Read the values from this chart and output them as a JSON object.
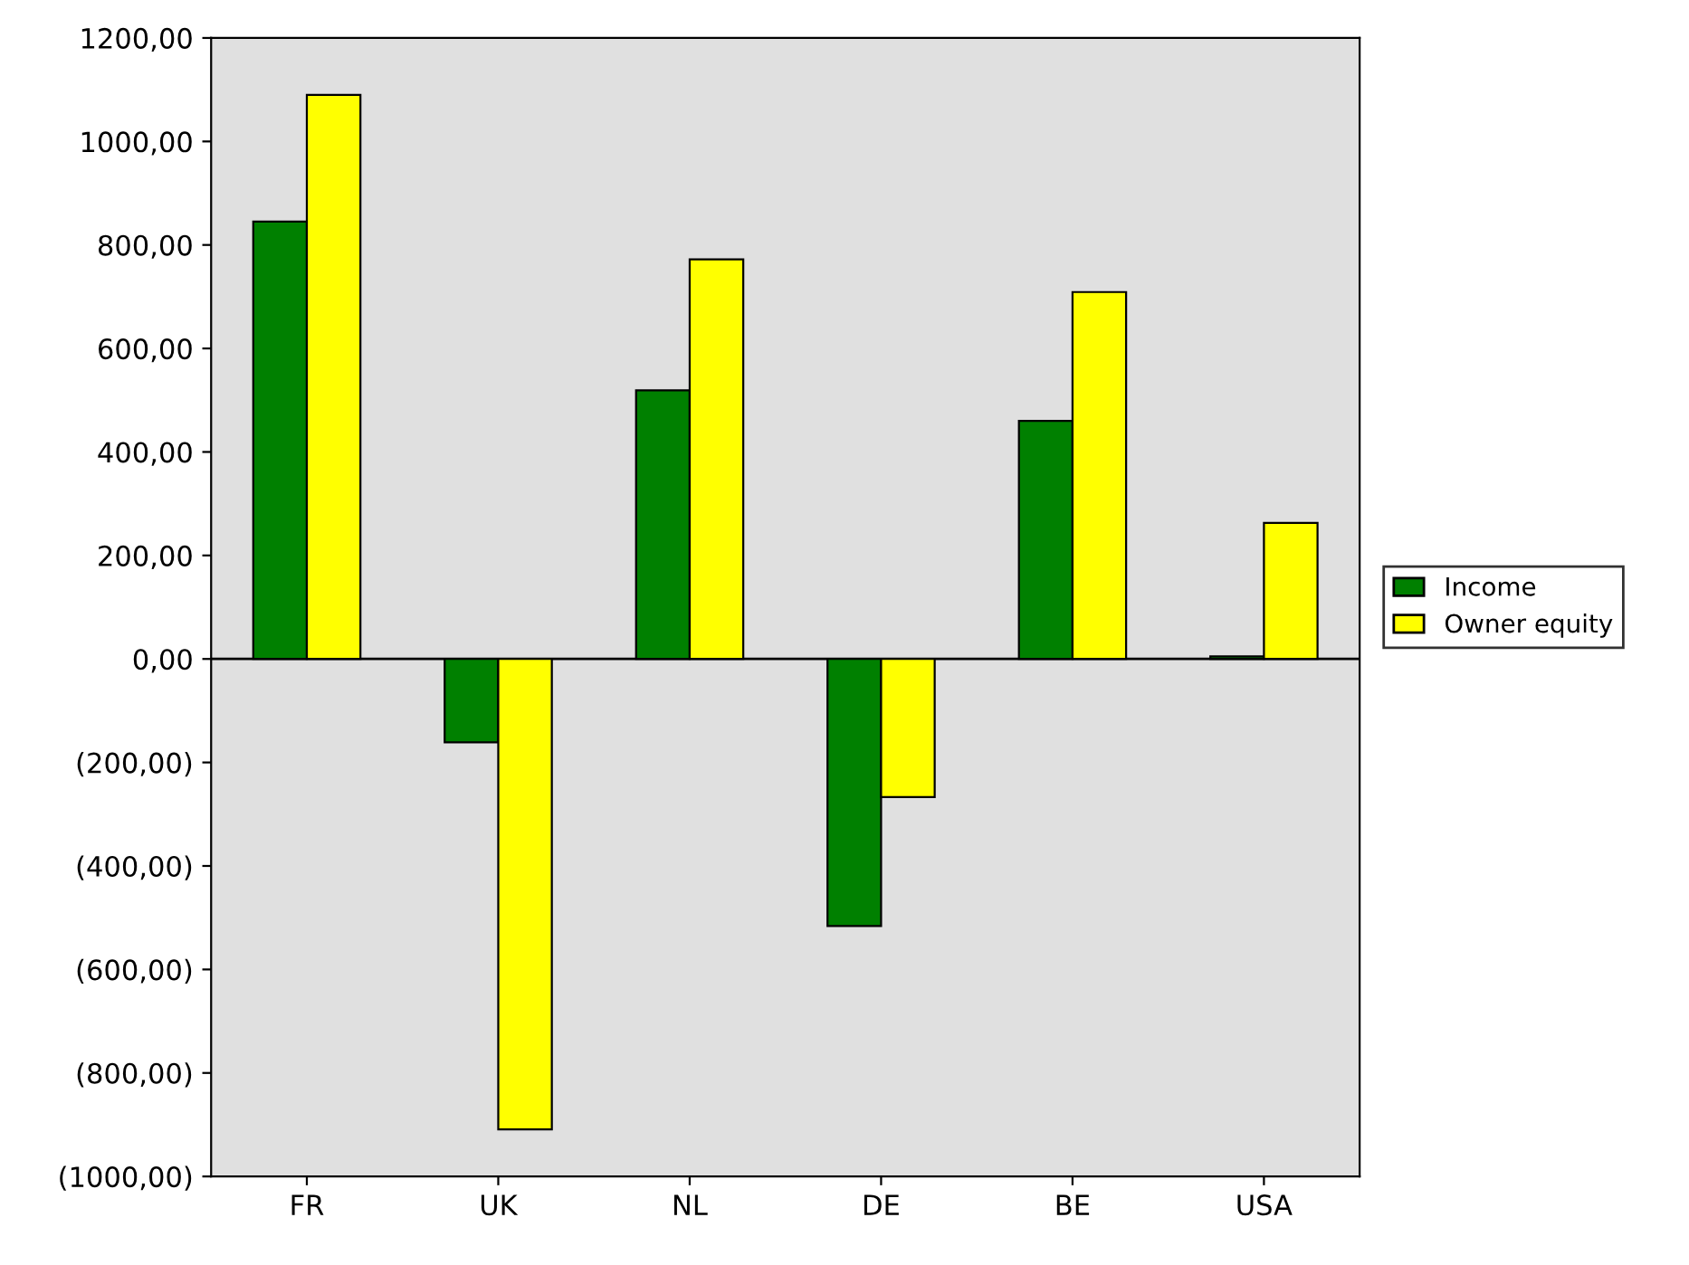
{
  "chart_data": {
    "type": "bar",
    "categories": [
      "FR",
      "UK",
      "NL",
      "DE",
      "BE",
      "USA"
    ],
    "series": [
      {
        "name": "Income",
        "color": "#008000",
        "values": [
          845,
          -161,
          519,
          -516,
          460,
          5
        ]
      },
      {
        "name": "Owner equity",
        "color": "#ffff00",
        "values": [
          1090,
          -909,
          772,
          -267,
          709,
          263
        ]
      }
    ],
    "ylim": [
      -1000,
      1200
    ],
    "yticks": [
      {
        "value": -1000,
        "label": "(1000,00)"
      },
      {
        "value": -800,
        "label": "(800,00)"
      },
      {
        "value": -600,
        "label": "(600,00)"
      },
      {
        "value": -400,
        "label": "(400,00)"
      },
      {
        "value": -200,
        "label": "(200,00)"
      },
      {
        "value": 0,
        "label": "0,00"
      },
      {
        "value": 200,
        "label": "200,00"
      },
      {
        "value": 400,
        "label": "400,00"
      },
      {
        "value": 600,
        "label": "600,00"
      },
      {
        "value": 800,
        "label": "800,00"
      },
      {
        "value": 1000,
        "label": "1000,00"
      },
      {
        "value": 1200,
        "label": "1200,00"
      }
    ],
    "ref_lines": [
      {
        "axis": "y",
        "value": 0,
        "color": "#000000"
      }
    ],
    "grid": false,
    "legend": "right"
  }
}
